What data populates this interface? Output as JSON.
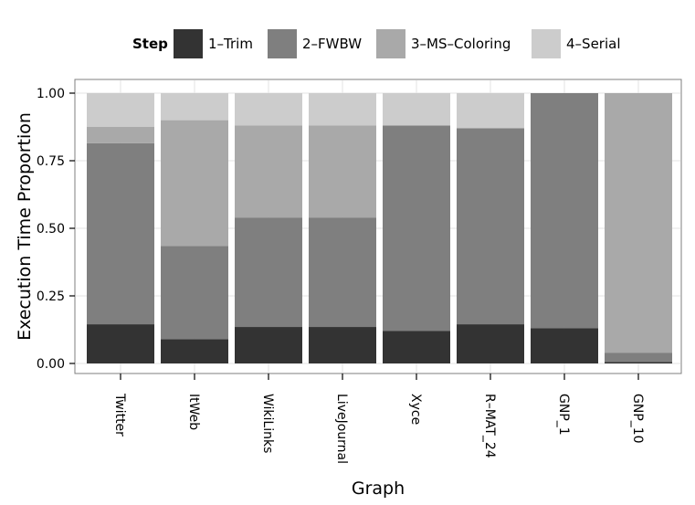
{
  "chart_data": {
    "type": "bar",
    "stacked": true,
    "orientation": "vertical",
    "xlabel": "Graph",
    "ylabel": "Execution Time Proportion",
    "ylim": [
      0,
      1
    ],
    "yticks": [
      "0.00",
      "0.25",
      "0.50",
      "0.75",
      "1.00"
    ],
    "grid": true,
    "legend": {
      "title": "Step",
      "position": "top"
    },
    "categories": [
      "Twitter",
      "ItWeb",
      "WikiLinks",
      "LiveJournal",
      "Xyce",
      "R–MAT_24",
      "GNP_1",
      "GNP_10"
    ],
    "series": [
      {
        "name": "1–Trim",
        "color": "#333333",
        "values": [
          0.145,
          0.09,
          0.135,
          0.135,
          0.12,
          0.145,
          0.13,
          0.005
        ]
      },
      {
        "name": "2–FWBW",
        "color": "#7f7f7f",
        "values": [
          0.67,
          0.345,
          0.405,
          0.405,
          0.76,
          0.725,
          0.87,
          0.035
        ]
      },
      {
        "name": "3–MS–Coloring",
        "color": "#a9a9a9",
        "values": [
          0.06,
          0.465,
          0.34,
          0.34,
          0.0,
          0.0,
          0.0,
          0.96
        ]
      },
      {
        "name": "4–Serial",
        "color": "#cccccc",
        "values": [
          0.125,
          0.1,
          0.12,
          0.12,
          0.12,
          0.13,
          0.0,
          0.0
        ]
      }
    ]
  }
}
